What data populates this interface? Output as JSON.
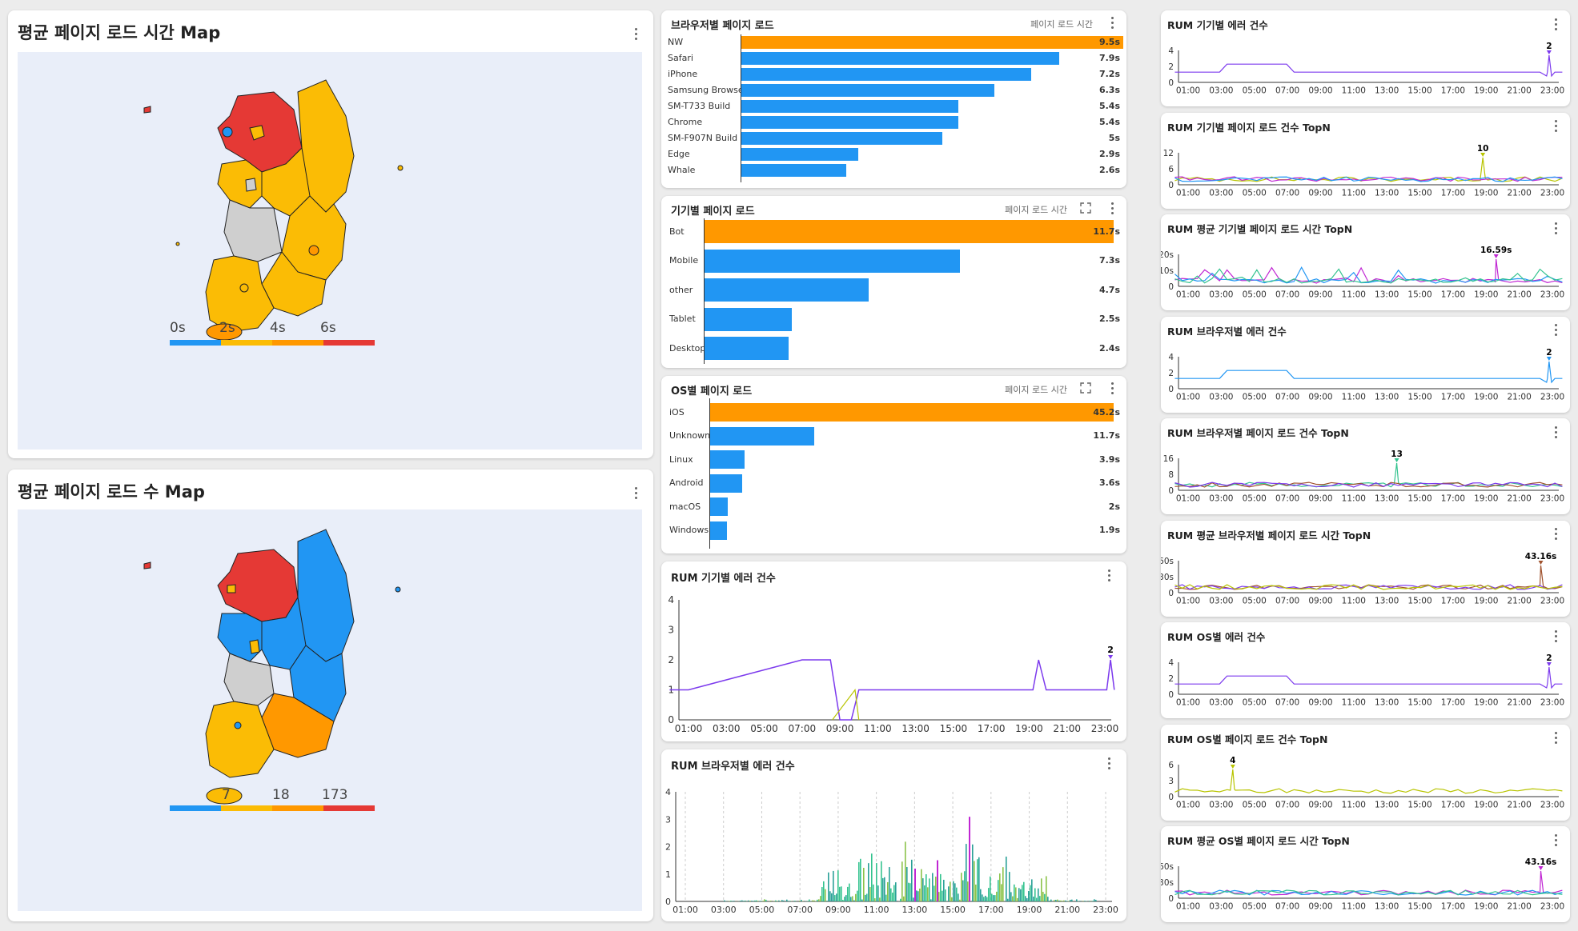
{
  "colors": {
    "orange": "#ff9800",
    "blue": "#2196f3",
    "red": "#e53935",
    "amber": "#fbbc05",
    "gray": "#cfcfcf",
    "map_bg": "#e9eef9"
  },
  "map1": {
    "title": "평균 페이지 로드 시간 Map",
    "legend": [
      "0s",
      "2s",
      "4s",
      "6s"
    ]
  },
  "map2": {
    "title": "평균 페이지 로드 수 Map",
    "legend": [
      "7",
      "18",
      "173"
    ]
  },
  "browser_bars": {
    "title": "브라우저별 페이지 로드",
    "metric": "페이지 로드 시간",
    "items": [
      [
        "NW",
        "9.5s",
        9.5
      ],
      [
        "Safari",
        "7.9s",
        7.9
      ],
      [
        "iPhone",
        "7.2s",
        7.2
      ],
      [
        "Samsung Browser",
        "6.3s",
        6.3
      ],
      [
        "SM-T733 Build",
        "5.4s",
        5.4
      ],
      [
        "Chrome",
        "5.4s",
        5.4
      ],
      [
        "SM-F907N Build",
        "5s",
        5
      ],
      [
        "Edge",
        "2.9s",
        2.9
      ],
      [
        "Whale",
        "2.6s",
        2.6
      ]
    ]
  },
  "device_bars": {
    "title": "기기별 페이지 로드",
    "metric": "페이지 로드 시간",
    "items": [
      [
        "Bot",
        "11.7s",
        11.7
      ],
      [
        "Mobile",
        "7.3s",
        7.3
      ],
      [
        "other",
        "4.7s",
        4.7
      ],
      [
        "Tablet",
        "2.5s",
        2.5
      ],
      [
        "Desktop",
        "2.4s",
        2.4
      ]
    ]
  },
  "os_bars": {
    "title": "OS별 페이지 로드",
    "metric": "페이지 로드 시간",
    "items": [
      [
        "iOS",
        "45.2s",
        45.2
      ],
      [
        "Unknown",
        "11.7s",
        11.7
      ],
      [
        "Linux",
        "3.9s",
        3.9
      ],
      [
        "Android",
        "3.6s",
        3.6
      ],
      [
        "macOS",
        "2s",
        2
      ],
      [
        "Windows",
        "1.9s",
        1.9
      ]
    ]
  },
  "hours": [
    "01:00",
    "03:00",
    "05:00",
    "07:00",
    "09:00",
    "11:00",
    "13:00",
    "15:00",
    "17:00",
    "19:00",
    "21:00",
    "23:00"
  ],
  "mid_device_errors": {
    "title": "RUM 기기별 에러 건수",
    "yticks": [
      "4",
      "3",
      "2",
      "1",
      "0"
    ],
    "peak_label": "2"
  },
  "mid_browser_errors": {
    "title": "RUM 브라우저별 에러 건수",
    "yticks": [
      "4",
      "3",
      "2",
      "1",
      "0"
    ]
  },
  "right_charts": [
    {
      "title": "RUM 기기별 에러 건수",
      "yticks": [
        "4",
        "2",
        "0"
      ],
      "peak": "2"
    },
    {
      "title": "RUM 기기별 페이지 로드 건수 TopN",
      "yticks": [
        "12",
        "6",
        "0"
      ],
      "peak": "10"
    },
    {
      "title": "RUM 평균 기기별 페이지 로드 시간 TopN",
      "yticks": [
        "20s",
        "10s",
        "0"
      ],
      "peak": "16.59s"
    },
    {
      "title": "RUM 브라우저별 에러 건수",
      "yticks": [
        "4",
        "2",
        "0"
      ],
      "peak": "2"
    },
    {
      "title": "RUM 브라우저별 페이지 로드 건수 TopN",
      "yticks": [
        "16",
        "8",
        "0"
      ],
      "peak": "13"
    },
    {
      "title": "RUM 평균 브라우저별 페이지 로드 시간 TopN",
      "yticks": [
        "60s",
        "30s",
        "0"
      ],
      "peak": "43.16s"
    },
    {
      "title": "RUM OS별 에러 건수",
      "yticks": [
        "4",
        "2",
        "0"
      ],
      "peak": "2"
    },
    {
      "title": "RUM OS별 페이지 로드 건수 TopN",
      "yticks": [
        "6",
        "3",
        "0"
      ],
      "peak": "4"
    },
    {
      "title": "RUM 평균 OS별 페이지 로드 시간 TopN",
      "yticks": [
        "60s",
        "30s",
        "0"
      ],
      "peak": "43.16s"
    }
  ]
}
